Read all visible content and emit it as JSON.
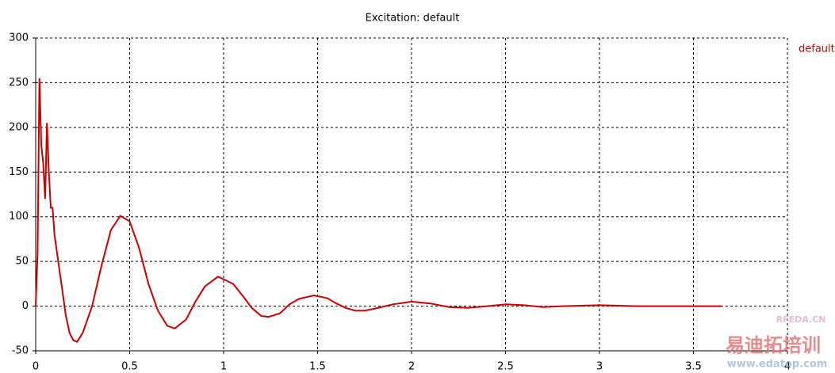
{
  "chart_data": {
    "type": "line",
    "title": "Excitation: default",
    "x": [
      0,
      0.01,
      0.02,
      0.03,
      0.04,
      0.05,
      0.06,
      0.07,
      0.08,
      0.09,
      0.1,
      0.12,
      0.14,
      0.16,
      0.18,
      0.2,
      0.22,
      0.25,
      0.3,
      0.35,
      0.4,
      0.45,
      0.5,
      0.55,
      0.6,
      0.65,
      0.7,
      0.74,
      0.8,
      0.85,
      0.9,
      0.97,
      1.05,
      1.1,
      1.15,
      1.2,
      1.24,
      1.3,
      1.35,
      1.4,
      1.48,
      1.55,
      1.6,
      1.65,
      1.7,
      1.75,
      1.8,
      1.9,
      2.0,
      2.1,
      2.2,
      2.3,
      2.4,
      2.5,
      2.6,
      2.7,
      2.8,
      3.0,
      3.2,
      3.4,
      3.6,
      3.65
    ],
    "series": [
      {
        "name": "default",
        "color": "#cc0000",
        "values": [
          0,
          60,
          255,
          180,
          160,
          120,
          205,
          150,
          110,
          110,
          80,
          50,
          20,
          -10,
          -30,
          -38,
          -40,
          -30,
          0,
          45,
          85,
          101,
          95,
          65,
          25,
          -5,
          -22,
          -25,
          -15,
          5,
          22,
          33,
          25,
          12,
          -2,
          -11,
          -12,
          -8,
          2,
          8,
          12,
          9,
          3,
          -2,
          -5,
          -5,
          -3,
          2,
          5,
          3,
          -1,
          -2,
          0,
          2,
          1,
          -1,
          0,
          1,
          0,
          0,
          0,
          0
        ]
      }
    ],
    "xlim": [
      0,
      4
    ],
    "ylim": [
      -50,
      300
    ],
    "xticks": [
      0,
      0.5,
      1,
      1.5,
      2,
      2.5,
      3,
      3.5,
      4
    ],
    "yticks": [
      -50,
      0,
      50,
      100,
      150,
      200,
      250,
      300
    ],
    "grid": true,
    "legend": "right",
    "watermark": [
      "RFEDA.CN",
      "易迪拓培训",
      "www.edatop.com"
    ]
  }
}
